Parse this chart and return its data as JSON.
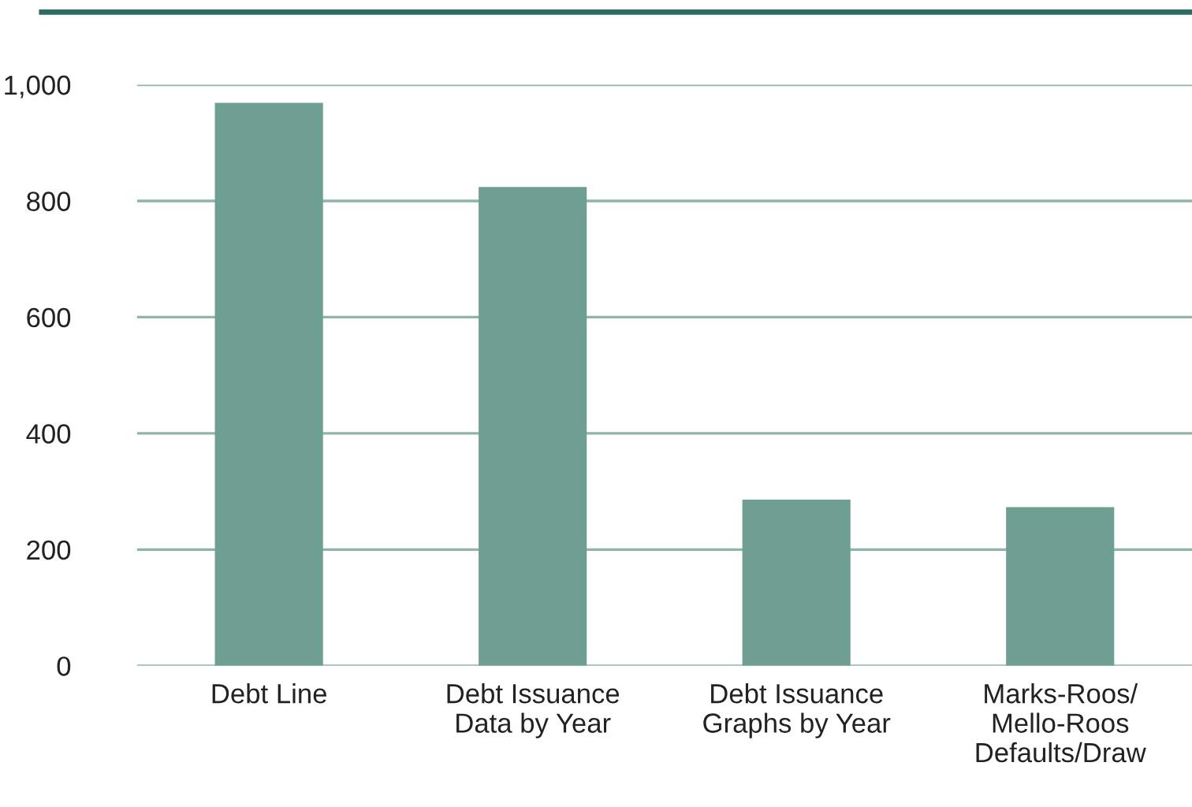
{
  "chart_data": {
    "type": "bar",
    "categories": [
      "Debt Line",
      "Debt Issuance\nData by Year",
      "Debt Issuance\nGraphs by Year",
      "Marks-Roos/\nMello-Roos\nDefaults/Draw"
    ],
    "values": [
      969,
      824,
      286,
      273
    ],
    "color": "#6f9e93",
    "ylim": [
      0,
      1000
    ],
    "yticks": [
      0,
      {
        "value": 200,
        "label": "200"
      },
      {
        "value": 400,
        "label": "400"
      },
      {
        "value": 600,
        "label": "600"
      },
      {
        "value": 800,
        "label": "800"
      },
      {
        "value": 1000,
        "label": "1,000"
      }
    ],
    "grid": "y"
  }
}
